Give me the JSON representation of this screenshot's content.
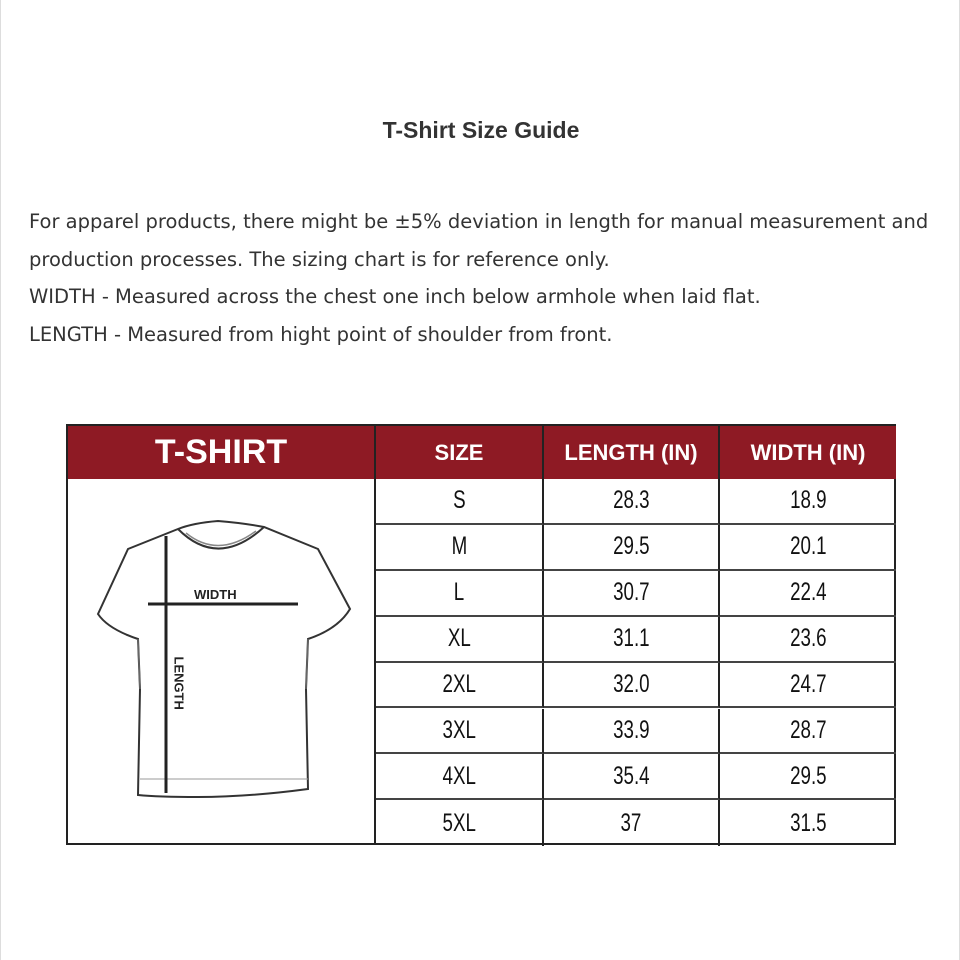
{
  "title": "T-Shirt Size Guide",
  "description": [
    "For apparel products, there might be ±5% deviation in length for manual measurement and production processes. The sizing chart is for reference only.",
    "WIDTH - Measured across the chest one inch below armhole when laid flat.",
    "LENGTH - Measured from hight point of shoulder from front."
  ],
  "size_chart": {
    "header_color": "#8e1a24",
    "headers": [
      "T-SHIRT",
      "SIZE",
      "LENGTH (IN)",
      "WIDTH (IN)"
    ],
    "diagram_labels": {
      "width": "WIDTH",
      "length": "LENGTH"
    },
    "rows": [
      {
        "size": "S",
        "length": "28.3",
        "width": "18.9"
      },
      {
        "size": "M",
        "length": "29.5",
        "width": "20.1"
      },
      {
        "size": "L",
        "length": "30.7",
        "width": "22.4"
      },
      {
        "size": "XL",
        "length": "31.1",
        "width": "23.6"
      },
      {
        "size": "2XL",
        "length": "32.0",
        "width": "24.7"
      },
      {
        "size": "3XL",
        "length": "33.9",
        "width": "28.7"
      },
      {
        "size": "4XL",
        "length": "35.4",
        "width": "29.5"
      },
      {
        "size": "5XL",
        "length": "37",
        "width": "31.5"
      }
    ]
  }
}
